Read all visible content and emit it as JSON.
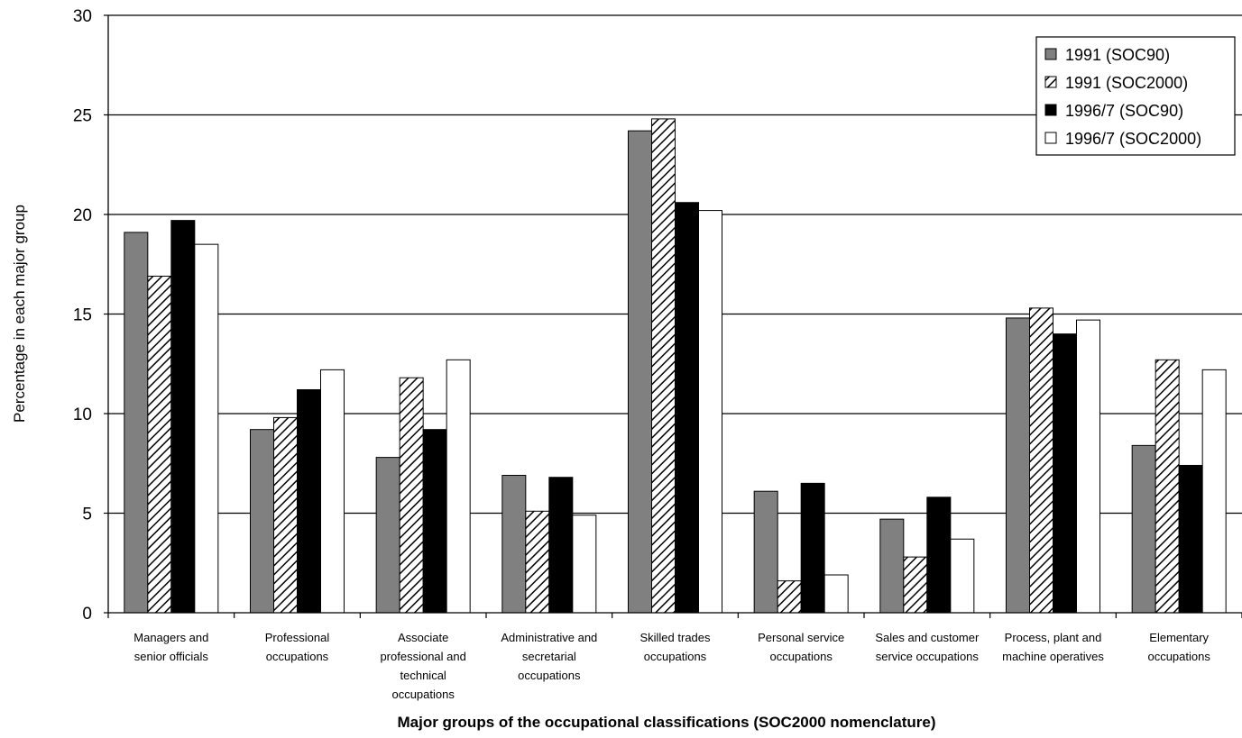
{
  "chart_data": {
    "type": "bar",
    "title": "",
    "xlabel": "Major groups of the occupational classifications (SOC2000 nomenclature)",
    "ylabel": "Percentage in each major group",
    "ylim": [
      0,
      30
    ],
    "yticks": [
      0,
      5,
      10,
      15,
      20,
      25,
      30
    ],
    "grid": true,
    "legend_position": "top-right",
    "categories": [
      [
        "Managers and",
        "senior officials"
      ],
      [
        "Professional",
        "occupations"
      ],
      [
        "Associate",
        "professional and",
        "technical",
        "occupations"
      ],
      [
        "Administrative and",
        "secretarial",
        "occupations"
      ],
      [
        "Skilled trades",
        "occupations"
      ],
      [
        "Personal service",
        "occupations"
      ],
      [
        "Sales and customer",
        "service occupations"
      ],
      [
        "Process, plant and",
        "machine operatives"
      ],
      [
        "Elementary",
        "occupations"
      ]
    ],
    "series": [
      {
        "name": "1991 (SOC90)",
        "fill": "#808080",
        "pattern": "solid",
        "values": [
          19.1,
          9.2,
          7.8,
          6.9,
          24.2,
          6.1,
          4.7,
          14.8,
          8.4
        ]
      },
      {
        "name": "1991 (SOC2000)",
        "fill": "#ffffff",
        "pattern": "hatch",
        "values": [
          16.9,
          9.8,
          11.8,
          5.1,
          24.8,
          1.6,
          2.8,
          15.3,
          12.7
        ]
      },
      {
        "name": "1996/7 (SOC90)",
        "fill": "#000000",
        "pattern": "solid",
        "values": [
          19.7,
          11.2,
          9.2,
          6.8,
          20.6,
          6.5,
          5.8,
          14.0,
          7.4
        ]
      },
      {
        "name": "1996/7 (SOC2000)",
        "fill": "#ffffff",
        "pattern": "solid",
        "values": [
          18.5,
          12.2,
          12.7,
          4.9,
          20.2,
          1.9,
          3.7,
          14.7,
          12.2
        ]
      }
    ]
  }
}
